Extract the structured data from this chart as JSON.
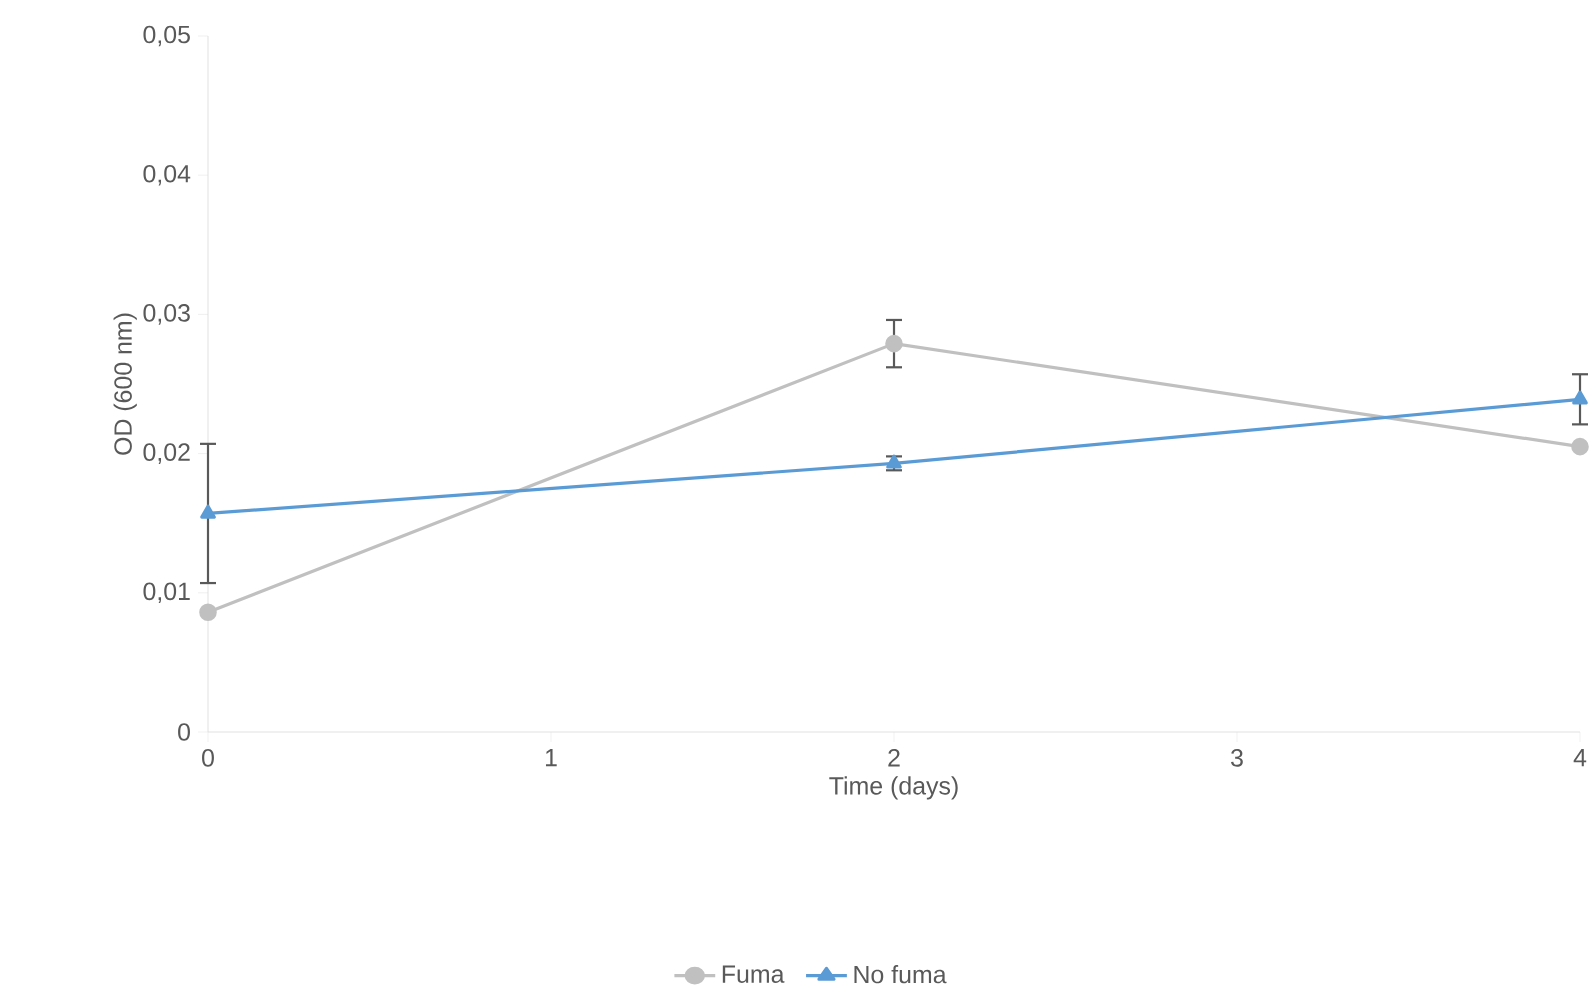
{
  "chart_data": {
    "type": "line",
    "xlabel": "Time (days)",
    "ylabel": "OD (600 nm)",
    "x": [
      0,
      2,
      4
    ],
    "xlim": [
      0,
      4
    ],
    "xticks": [
      0,
      1,
      2,
      3,
      4
    ],
    "ylim": [
      0,
      0.05
    ],
    "yticks": [
      0,
      {
        "value": 0.01,
        "label": "0,01"
      },
      {
        "value": 0.02,
        "label": "0,02"
      },
      {
        "value": 0.03,
        "label": "0,03"
      },
      {
        "value": 0.04,
        "label": "0,04"
      },
      {
        "value": 0.05,
        "label": "0,05"
      }
    ],
    "legend": "bottom",
    "series": [
      {
        "name": "Fuma",
        "color": "#c0c0c0",
        "marker": "circle",
        "values": [
          0.0086,
          0.0279,
          0.0205
        ],
        "errors": [
          null,
          0.0017,
          null
        ]
      },
      {
        "name": "No fuma",
        "color": "#5b9bd5",
        "marker": "triangle",
        "values": [
          0.0157,
          0.0193,
          0.0239
        ],
        "errors": [
          0.005,
          0.0005,
          0.0018
        ]
      }
    ]
  }
}
